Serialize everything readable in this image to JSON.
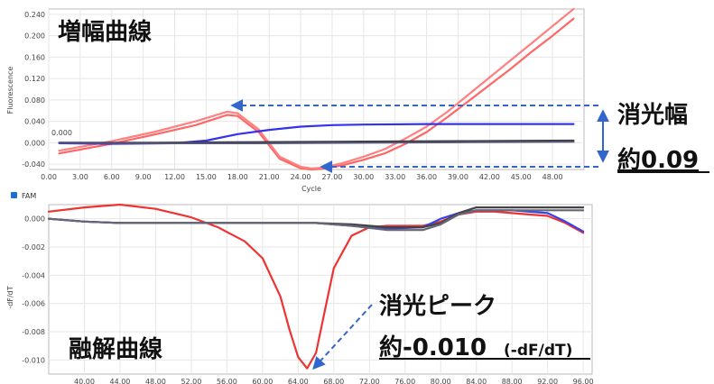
{
  "chart_data": [
    {
      "type": "line",
      "title": "増幅曲線",
      "xlabel": "Cycle",
      "ylabel": "Fluorescence",
      "xlim": [
        0,
        51
      ],
      "ylim": [
        -0.05,
        0.25
      ],
      "x_ticks": [
        "0.00",
        "3.00",
        "6.00",
        "9.00",
        "12.00",
        "15.00",
        "18.00",
        "21.00",
        "24.00",
        "27.00",
        "30.00",
        "33.00",
        "36.00",
        "39.00",
        "42.00",
        "45.00",
        "48.00"
      ],
      "y_ticks": [
        "0.240",
        "0.200",
        "0.160",
        "0.120",
        "0.080",
        "0.040",
        "0.000",
        "-0.040"
      ],
      "series": [
        {
          "color": "#ff6666",
          "x": [
            1,
            6,
            10,
            14,
            17,
            18,
            20,
            22,
            24,
            25,
            26,
            28,
            30,
            32,
            34,
            36,
            38,
            40,
            42,
            44,
            46,
            48,
            50
          ],
          "y": [
            -0.02,
            -0.002,
            0.015,
            0.033,
            0.052,
            0.05,
            0.02,
            -0.03,
            -0.048,
            -0.05,
            -0.049,
            -0.042,
            -0.032,
            -0.02,
            -0.002,
            0.02,
            0.048,
            0.078,
            0.108,
            0.138,
            0.17,
            0.2,
            0.232
          ]
        },
        {
          "color": "#ff8080",
          "x": [
            1,
            6,
            10,
            14,
            17,
            18,
            20,
            22,
            24,
            25,
            26,
            28,
            30,
            32,
            34,
            36,
            38,
            40,
            42,
            44,
            46,
            48,
            50
          ],
          "y": [
            -0.015,
            0.003,
            0.02,
            0.04,
            0.058,
            0.055,
            0.025,
            -0.026,
            -0.045,
            -0.048,
            -0.047,
            -0.038,
            -0.026,
            -0.012,
            0.008,
            0.03,
            0.058,
            0.09,
            0.122,
            0.154,
            0.186,
            0.218,
            0.25
          ]
        },
        {
          "color": "#3333ee",
          "x": [
            1,
            6,
            12,
            15,
            18,
            21,
            24,
            27,
            30,
            36,
            42,
            48,
            50
          ],
          "y": [
            -0.001,
            -0.002,
            -0.001,
            0.004,
            0.016,
            0.024,
            0.03,
            0.033,
            0.034,
            0.035,
            0.035,
            0.035,
            0.035
          ]
        },
        {
          "color": "#333333",
          "x": [
            1,
            10,
            20,
            30,
            40,
            50
          ],
          "y": [
            0.0,
            0.0,
            0.001,
            0.002,
            0.003,
            0.004
          ]
        },
        {
          "color": "#555577",
          "x": [
            1,
            10,
            20,
            30,
            40,
            50
          ],
          "y": [
            0.0,
            -0.001,
            -0.001,
            0.0,
            0.001,
            0.002
          ]
        }
      ],
      "inline_label": "0.000",
      "annotation": {
        "line1": "消光幅",
        "line2": "約0.09"
      }
    },
    {
      "type": "line",
      "title": "融解曲線",
      "legend": "FAM",
      "ylabel": "-dF/dT",
      "xlim": [
        36,
        97
      ],
      "ylim": [
        -0.011,
        0.001
      ],
      "x_ticks": [
        "40.00",
        "44.00",
        "48.00",
        "52.00",
        "56.00",
        "60.00",
        "64.00",
        "68.00",
        "72.00",
        "76.00",
        "80.00",
        "84.00",
        "88.00",
        "92.00",
        "96.00"
      ],
      "y_ticks": [
        "0.000",
        "-0.002",
        "-0.004",
        "-0.006",
        "-0.008",
        "-0.010"
      ],
      "series": [
        {
          "color": "#ee3333",
          "x": [
            36,
            40,
            44,
            48,
            52,
            55,
            58,
            60,
            62,
            63,
            64,
            65,
            66,
            67,
            68,
            70,
            72,
            74,
            76,
            78,
            80,
            82,
            84,
            86,
            88,
            90,
            92,
            94,
            96
          ],
          "y": [
            0.0005,
            0.0008,
            0.001,
            0.0007,
            0.0001,
            -0.0006,
            -0.0016,
            -0.0028,
            -0.0055,
            -0.0078,
            -0.0098,
            -0.0106,
            -0.0095,
            -0.0065,
            -0.0035,
            -0.0012,
            -0.0006,
            -0.0005,
            -0.0005,
            -0.0005,
            -0.0002,
            0.0003,
            0.0005,
            0.0005,
            0.0004,
            0.0003,
            0.0002,
            -0.0003,
            -0.001
          ]
        },
        {
          "color": "#3344ee",
          "x": [
            36,
            40,
            44,
            52,
            60,
            66,
            70,
            74,
            78,
            80,
            82,
            84,
            88,
            92,
            94,
            96
          ],
          "y": [
            0.0,
            -0.0002,
            -0.0003,
            -0.0003,
            -0.0003,
            -0.0003,
            -0.0005,
            -0.0007,
            -0.0006,
            0.0,
            0.0004,
            0.0006,
            0.0006,
            0.0004,
            -0.0002,
            -0.0009
          ]
        },
        {
          "color": "#444444",
          "x": [
            36,
            40,
            44,
            52,
            60,
            66,
            70,
            74,
            78,
            80,
            82,
            84,
            88,
            92,
            96
          ],
          "y": [
            0.0,
            -0.0002,
            -0.0003,
            -0.0003,
            -0.0003,
            -0.0003,
            -0.0004,
            -0.0006,
            -0.0006,
            -0.0003,
            0.0004,
            0.0008,
            0.0008,
            0.0008,
            0.0008
          ]
        },
        {
          "color": "#666677",
          "x": [
            36,
            40,
            44,
            52,
            60,
            66,
            70,
            74,
            78,
            80,
            82,
            84,
            88,
            92,
            96
          ],
          "y": [
            0.0,
            -0.0002,
            -0.0003,
            -0.0003,
            -0.0003,
            -0.0003,
            -0.0005,
            -0.0008,
            -0.0008,
            -0.0004,
            0.0003,
            0.0006,
            0.0006,
            0.0006,
            0.0006
          ]
        }
      ],
      "annotation": {
        "line1": "消光ピーク",
        "line2_main": "約-0.010",
        "line2_unit": "(-dF/dT)"
      }
    }
  ],
  "colors": {
    "annotation_arrow": "#3366cc",
    "legend_box": "#1f6fd0"
  }
}
